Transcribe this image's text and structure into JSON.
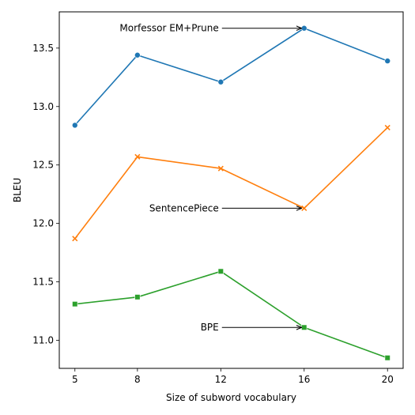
{
  "chart_data": {
    "type": "line",
    "xlabel": "Size of subword vocabulary",
    "ylabel": "BLEU",
    "x": [
      5,
      8,
      12,
      16,
      20
    ],
    "xticks": [
      "5",
      "8",
      "12",
      "16",
      "20"
    ],
    "yticks": [
      "11.0",
      "11.5",
      "12.0",
      "12.5",
      "13.0",
      "13.5"
    ],
    "ytick_values": [
      11.0,
      11.5,
      12.0,
      12.5,
      13.0,
      13.5
    ],
    "xlim": [
      4.25,
      20.75
    ],
    "ylim": [
      10.76,
      13.81
    ],
    "grid": false,
    "series": [
      {
        "name": "Morfessor EM+Prune",
        "color": "#1f77b4",
        "marker": "circle",
        "values": [
          12.84,
          13.44,
          13.21,
          13.67,
          13.39
        ]
      },
      {
        "name": "SentencePiece",
        "color": "#ff7f0e",
        "marker": "x",
        "values": [
          11.87,
          12.57,
          12.47,
          12.13,
          12.82
        ]
      },
      {
        "name": "BPE",
        "color": "#2ca02c",
        "marker": "square",
        "values": [
          11.31,
          11.37,
          11.59,
          11.11,
          10.85
        ]
      }
    ],
    "annotations": [
      {
        "text": "Morfessor EM+Prune",
        "x": 16,
        "y": 13.67
      },
      {
        "text": "SentencePiece",
        "x": 16,
        "y": 12.13
      },
      {
        "text": "BPE",
        "x": 16,
        "y": 11.11
      }
    ]
  }
}
